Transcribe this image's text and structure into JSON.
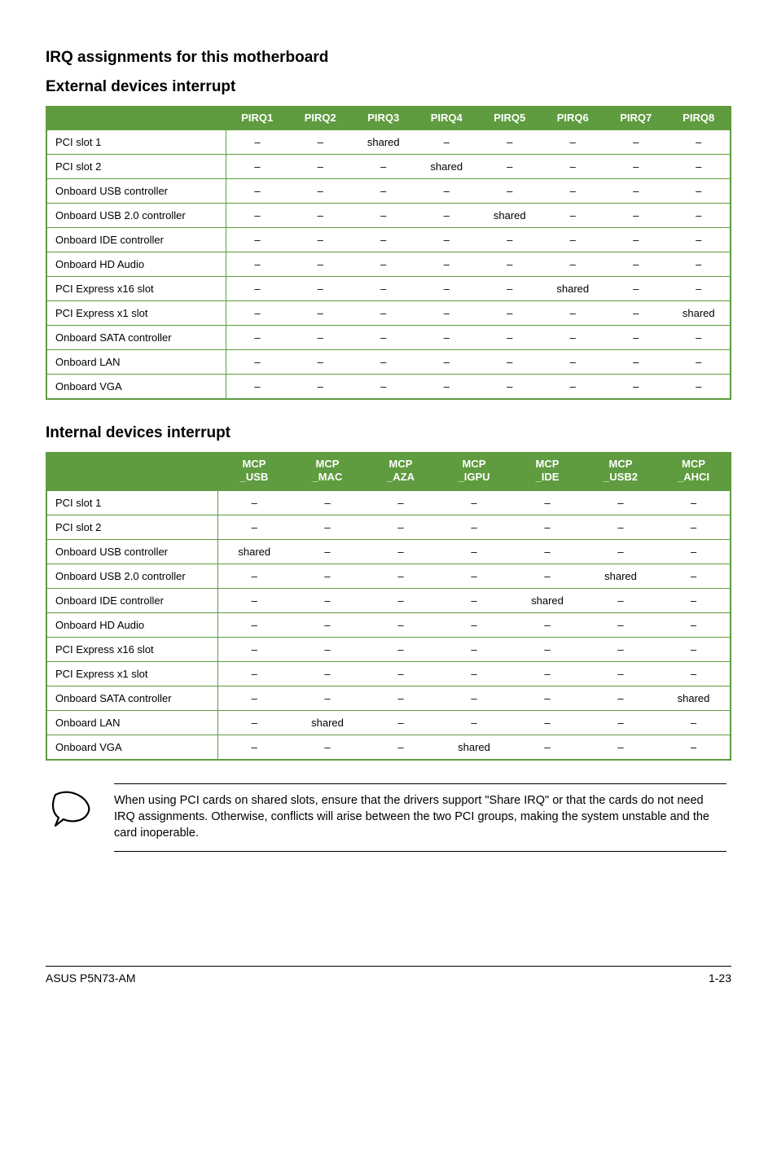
{
  "headings": {
    "main": "IRQ assignments for this motherboard",
    "external": "External devices interrupt",
    "internal": "Internal devices interrupt"
  },
  "table1": {
    "headers": [
      "PIRQ1",
      "PIRQ2",
      "PIRQ3",
      "PIRQ4",
      "PIRQ5",
      "PIRQ6",
      "PIRQ7",
      "PIRQ8"
    ],
    "rows": [
      {
        "label": "PCI slot 1",
        "cells": [
          "–",
          "–",
          "shared",
          "–",
          "–",
          "–",
          "–",
          "–"
        ]
      },
      {
        "label": "PCI slot 2",
        "cells": [
          "–",
          "–",
          "–",
          "shared",
          "–",
          "–",
          "–",
          "–"
        ]
      },
      {
        "label": "Onboard USB controller",
        "cells": [
          "–",
          "–",
          "–",
          "–",
          "–",
          "–",
          "–",
          "–"
        ]
      },
      {
        "label": "Onboard USB 2.0 controller",
        "cells": [
          "–",
          "–",
          "–",
          "–",
          "shared",
          "–",
          "–",
          "–"
        ]
      },
      {
        "label": "Onboard IDE controller",
        "cells": [
          "–",
          "–",
          "–",
          "–",
          "–",
          "–",
          "–",
          "–"
        ]
      },
      {
        "label": "Onboard HD Audio",
        "cells": [
          "–",
          "–",
          "–",
          "–",
          "–",
          "–",
          "–",
          "–"
        ]
      },
      {
        "label": "PCI Express x16 slot",
        "cells": [
          "–",
          "–",
          "–",
          "–",
          "–",
          "shared",
          "–",
          "–"
        ]
      },
      {
        "label": "PCI Express x1 slot",
        "cells": [
          "–",
          "–",
          "–",
          "–",
          "–",
          "–",
          "–",
          "shared"
        ]
      },
      {
        "label": "Onboard SATA controller",
        "cells": [
          "–",
          "–",
          "–",
          "–",
          "–",
          "–",
          "–",
          "–"
        ]
      },
      {
        "label": "Onboard LAN",
        "cells": [
          "–",
          "–",
          "–",
          "–",
          "–",
          "–",
          "–",
          "–"
        ]
      },
      {
        "label": "Onboard VGA",
        "cells": [
          "–",
          "–",
          "–",
          "–",
          "–",
          "–",
          "–",
          "–"
        ]
      }
    ]
  },
  "table2": {
    "headers": [
      "MCP\n_USB",
      "MCP\n_MAC",
      "MCP\n_AZA",
      "MCP\n_IGPU",
      "MCP\n_IDE",
      "MCP\n_USB2",
      "MCP\n_AHCI"
    ],
    "rows": [
      {
        "label": "PCI slot 1",
        "cells": [
          "–",
          "–",
          "–",
          "–",
          "–",
          "–",
          "–"
        ]
      },
      {
        "label": "PCI slot 2",
        "cells": [
          "–",
          "–",
          "–",
          "–",
          "–",
          "–",
          "–"
        ]
      },
      {
        "label": "Onboard USB controller",
        "cells": [
          "shared",
          "–",
          "–",
          "–",
          "–",
          "–",
          "–"
        ]
      },
      {
        "label": "Onboard USB 2.0 controller",
        "cells": [
          "–",
          "–",
          "–",
          "–",
          "–",
          "shared",
          "–"
        ]
      },
      {
        "label": "Onboard IDE controller",
        "cells": [
          "–",
          "–",
          "–",
          "–",
          "shared",
          "–",
          "–"
        ]
      },
      {
        "label": "Onboard HD Audio",
        "cells": [
          "–",
          "–",
          "–",
          "–",
          "–",
          "–",
          "–"
        ]
      },
      {
        "label": "PCI Express x16 slot",
        "cells": [
          "–",
          "–",
          "–",
          "–",
          "–",
          "–",
          "–"
        ]
      },
      {
        "label": "PCI Express x1 slot",
        "cells": [
          "–",
          "–",
          "–",
          "–",
          "–",
          "–",
          "–"
        ]
      },
      {
        "label": "Onboard SATA controller",
        "cells": [
          "–",
          "–",
          "–",
          "–",
          "–",
          "–",
          "shared"
        ]
      },
      {
        "label": "Onboard LAN",
        "cells": [
          "–",
          "shared",
          "–",
          "–",
          "–",
          "–",
          "–"
        ]
      },
      {
        "label": "Onboard VGA",
        "cells": [
          "–",
          "–",
          "–",
          "shared",
          "–",
          "–",
          "–"
        ]
      }
    ]
  },
  "note": "When using PCI cards on shared slots, ensure that the drivers support \"Share IRQ\" or that the cards do not need IRQ assignments. Otherwise, conflicts will arise between the two PCI groups, making the system unstable and the card inoperable.",
  "footer": {
    "left": "ASUS P5N73-AM",
    "right": "1-23"
  },
  "colors": {
    "header_bg": "#5f9b3f",
    "header_fg": "#ffffff",
    "border": "#5f9b3f",
    "text": "#000000",
    "background": "#ffffff"
  }
}
